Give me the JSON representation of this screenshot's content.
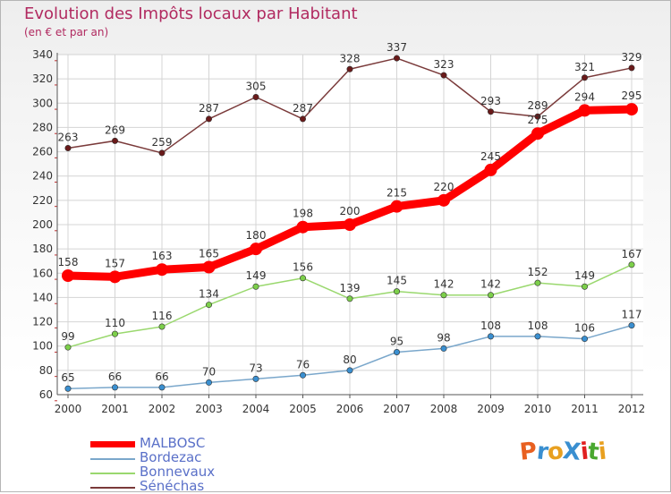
{
  "header": {
    "title": "Evolution des Impôts locaux par Habitant",
    "subtitle": "(en € et par an)"
  },
  "brand": {
    "logo_text": "ProXiti",
    "logo_colors": [
      "#e86020",
      "#3a8fd0",
      "#e8a020",
      "#3a8fd0",
      "#e02020",
      "#4aa830",
      "#e8a020"
    ]
  },
  "chart_data": {
    "type": "line",
    "title": "Evolution des Impôts locaux par Habitant",
    "subtitle": "(en € et par an)",
    "xlabel": "",
    "ylabel": "",
    "categories": [
      "2000",
      "2001",
      "2002",
      "2003",
      "2004",
      "2005",
      "2006",
      "2007",
      "2008",
      "2009",
      "2010",
      "2011",
      "2012"
    ],
    "ylim": [
      60,
      340
    ],
    "yticks": [
      60,
      80,
      100,
      120,
      140,
      160,
      180,
      200,
      220,
      240,
      260,
      280,
      300,
      320,
      340
    ],
    "grid": true,
    "legend_position": "bottom-left",
    "series": [
      {
        "name": "MALBOSC",
        "color": "#ff0000",
        "marker_color": "#ff0000",
        "emphasis": true,
        "values": [
          158,
          157,
          163,
          165,
          180,
          198,
          200,
          215,
          220,
          245,
          275,
          294,
          295
        ]
      },
      {
        "name": "Bordezac",
        "color": "#7aa7cb",
        "marker_color": "#3a8fd0",
        "emphasis": false,
        "values": [
          65,
          66,
          66,
          70,
          73,
          76,
          80,
          95,
          98,
          108,
          108,
          106,
          117
        ]
      },
      {
        "name": "Bonnevaux",
        "color": "#9ad86e",
        "marker_color": "#7ccf4a",
        "emphasis": false,
        "values": [
          99,
          110,
          116,
          134,
          149,
          156,
          139,
          145,
          142,
          142,
          152,
          149,
          167
        ]
      },
      {
        "name": "Sénéchas",
        "color": "#7a3a3a",
        "marker_color": "#6a1a1a",
        "emphasis": false,
        "values": [
          263,
          269,
          259,
          287,
          305,
          287,
          328,
          337,
          323,
          293,
          289,
          321,
          329
        ]
      }
    ]
  }
}
